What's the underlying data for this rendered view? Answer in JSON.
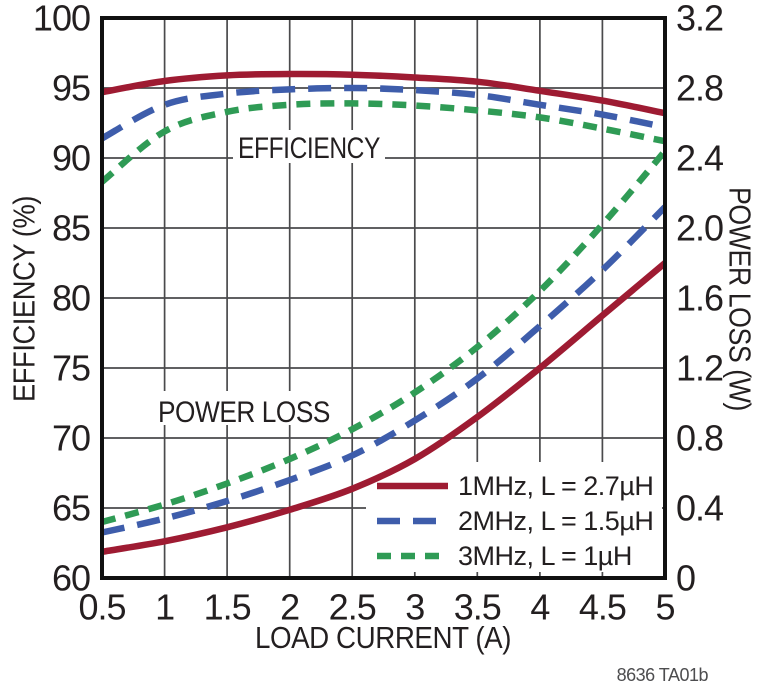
{
  "chart_data": {
    "type": "line",
    "xlabel": "LOAD CURRENT (A)",
    "x": [
      0.5,
      1,
      1.5,
      2,
      2.5,
      3,
      3.5,
      4,
      4.5,
      5
    ],
    "x_ticks": [
      "0.5",
      "1",
      "1.5",
      "2",
      "2.5",
      "3",
      "3.5",
      "4",
      "4.5",
      "5"
    ],
    "x_range": [
      0.5,
      5
    ],
    "left_axis": {
      "label": "EFFICIENCY (%)",
      "range": [
        60,
        100
      ],
      "ticks": [
        "100",
        "95",
        "90",
        "85",
        "80",
        "75",
        "70",
        "65",
        "60"
      ]
    },
    "right_axis": {
      "label": "POWER LOSS (W)",
      "range": [
        0,
        3.2
      ],
      "ticks": [
        "3.2",
        "2.8",
        "2.4",
        "2.0",
        "1.6",
        "1.2",
        "0.8",
        "0.4",
        "0"
      ]
    },
    "grid": true,
    "legend_position": "inside-bottom-right",
    "annotations": {
      "efficiency": "EFFICIENCY",
      "power_loss": "POWER LOSS"
    },
    "series": [
      {
        "name": "1MHz, L = 2.7µH",
        "color": "#9e1b32",
        "line_style": "solid",
        "efficiency_pct": [
          94.7,
          95.5,
          95.9,
          96.0,
          95.95,
          95.75,
          95.45,
          94.8,
          94.1,
          93.2
        ],
        "power_loss_w": [
          0.15,
          0.21,
          0.29,
          0.39,
          0.51,
          0.68,
          0.92,
          1.2,
          1.5,
          1.8
        ]
      },
      {
        "name": "2MHz, L = 1.5µH",
        "color": "#3e5dab",
        "line_style": "long-dash",
        "efficiency_pct": [
          91.4,
          93.8,
          94.6,
          94.9,
          95.0,
          94.85,
          94.5,
          93.8,
          93.1,
          92.2
        ],
        "power_loss_w": [
          0.26,
          0.34,
          0.44,
          0.56,
          0.7,
          0.9,
          1.14,
          1.44,
          1.76,
          2.12
        ]
      },
      {
        "name": "3MHz, L = 1µH",
        "color": "#2f9b55",
        "line_style": "short-dash",
        "efficiency_pct": [
          88.3,
          91.9,
          93.3,
          93.8,
          93.9,
          93.75,
          93.4,
          92.9,
          92.1,
          91.2
        ],
        "power_loss_w": [
          0.32,
          0.42,
          0.54,
          0.68,
          0.85,
          1.06,
          1.32,
          1.64,
          2.02,
          2.44
        ]
      }
    ]
  },
  "footnote": "8636 TA01b"
}
